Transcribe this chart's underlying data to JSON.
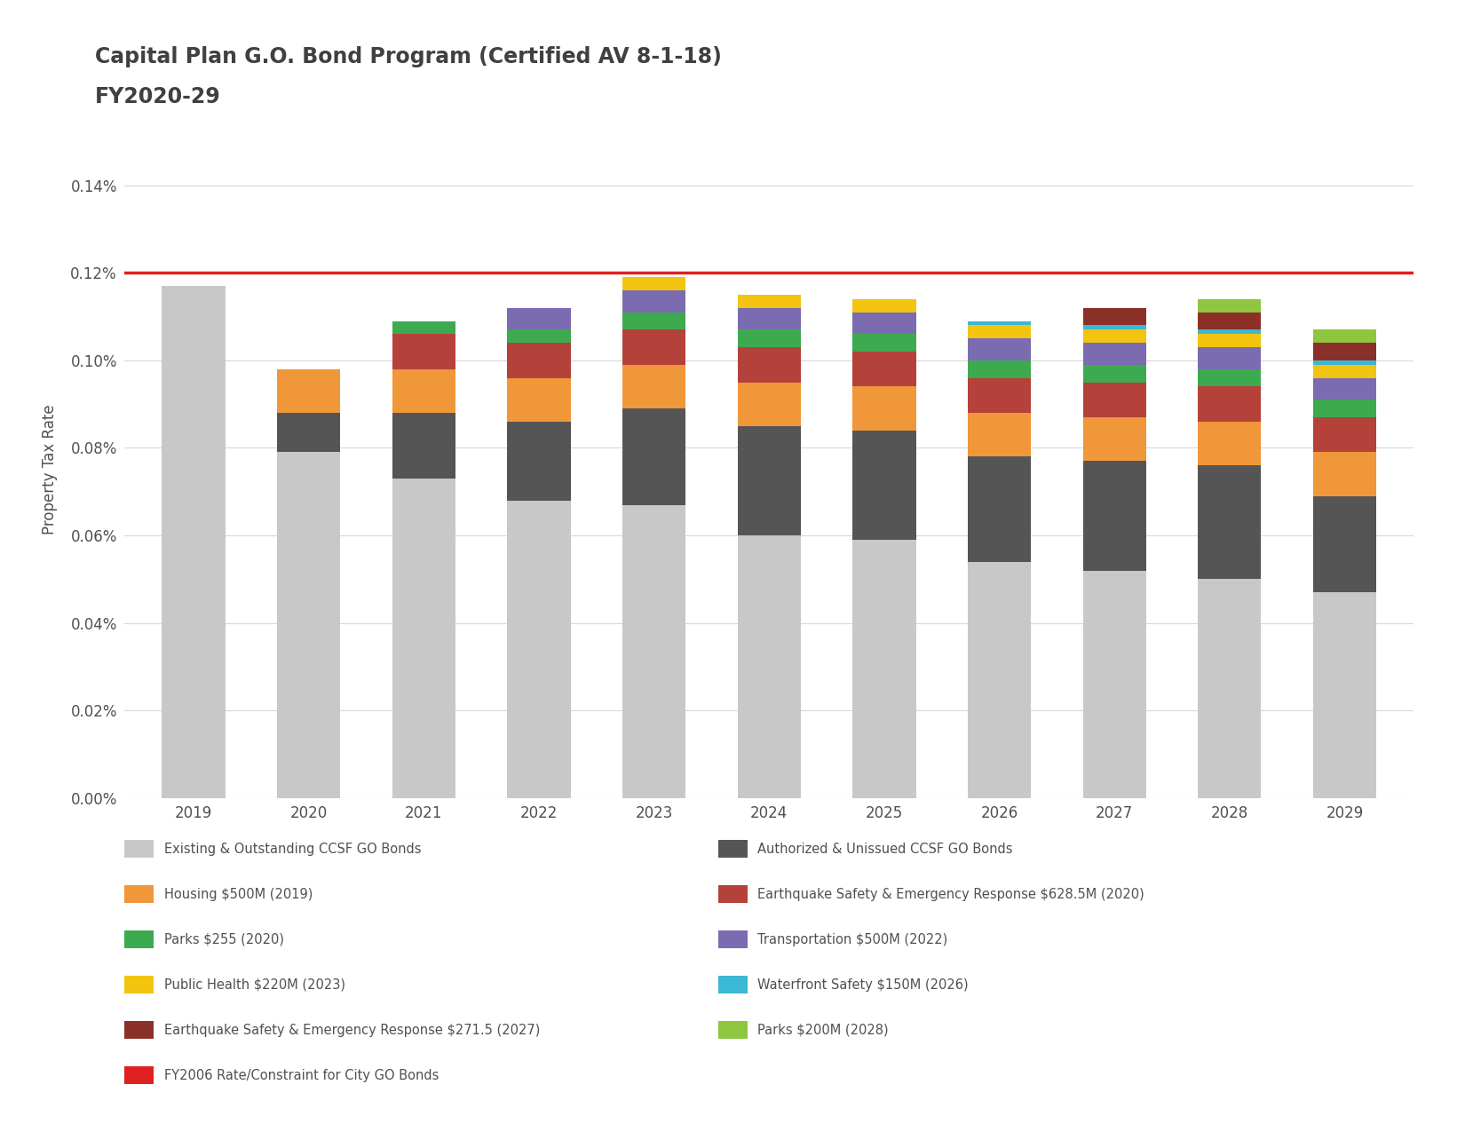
{
  "title_line1": "Capital Plan G.O. Bond Program (Certified AV 8-1-18)",
  "title_line2": "FY2020-29",
  "years": [
    "2019",
    "2020",
    "2021",
    "2022",
    "2023",
    "2024",
    "2025",
    "2026",
    "2027",
    "2028",
    "2029"
  ],
  "ylabel": "Property Tax Rate",
  "yticks": [
    0.0,
    0.0002,
    0.0004,
    0.0006,
    0.0008,
    0.001,
    0.0012,
    0.0014
  ],
  "ytick_labels": [
    "0.00%",
    "0.02%",
    "0.04%",
    "0.06%",
    "0.08%",
    "0.10%",
    "0.12%",
    "0.14%"
  ],
  "constraint_line": 0.0012,
  "segments": {
    "existing": [
      0.00117,
      0.00079,
      0.00073,
      0.00068,
      0.00067,
      0.0006,
      0.00059,
      0.00054,
      0.00052,
      0.0005,
      0.00047
    ],
    "authorized_unissued": [
      0.0,
      9e-05,
      0.00015,
      0.00018,
      0.00022,
      0.00025,
      0.00025,
      0.00024,
      0.00025,
      0.00026,
      0.00022
    ],
    "housing": [
      0.0,
      0.0001,
      0.0001,
      0.0001,
      0.0001,
      0.0001,
      0.0001,
      0.0001,
      0.0001,
      0.0001,
      0.0001
    ],
    "eser_628": [
      0.0,
      0.0,
      8e-05,
      8e-05,
      8e-05,
      8e-05,
      8e-05,
      8e-05,
      8e-05,
      8e-05,
      8e-05
    ],
    "parks_255": [
      0.0,
      0.0,
      3e-05,
      3e-05,
      4e-05,
      4e-05,
      4e-05,
      4e-05,
      4e-05,
      4e-05,
      4e-05
    ],
    "transportation": [
      0.0,
      0.0,
      0.0,
      5e-05,
      5e-05,
      5e-05,
      5e-05,
      5e-05,
      5e-05,
      5e-05,
      5e-05
    ],
    "public_health": [
      0.0,
      0.0,
      0.0,
      0.0,
      3e-05,
      3e-05,
      3e-05,
      3e-05,
      3e-05,
      3e-05,
      3e-05
    ],
    "waterfront": [
      0.0,
      0.0,
      0.0,
      0.0,
      0.0,
      0.0,
      0.0,
      1e-05,
      1e-05,
      1e-05,
      1e-05
    ],
    "eser_271": [
      0.0,
      0.0,
      0.0,
      0.0,
      0.0,
      0.0,
      0.0,
      0.0,
      4e-05,
      4e-05,
      4e-05
    ],
    "parks_200": [
      0.0,
      0.0,
      0.0,
      0.0,
      0.0,
      0.0,
      0.0,
      0.0,
      0.0,
      3e-05,
      3e-05
    ]
  },
  "colors": {
    "existing": "#c8c8c8",
    "authorized_unissued": "#555555",
    "housing": "#f0973a",
    "eser_628": "#b5413b",
    "parks_255": "#3daa4f",
    "transportation": "#7b6bb0",
    "public_health": "#f2c40f",
    "waterfront": "#3ab8d4",
    "eser_271": "#8b3028",
    "parks_200": "#8ec63f"
  },
  "legend_left": [
    {
      "label": "Existing & Outstanding CCSF GO Bonds",
      "color": "#c8c8c8"
    },
    {
      "label": "Housing $500M (2019)",
      "color": "#f0973a"
    },
    {
      "label": "Parks $255 (2020)",
      "color": "#3daa4f"
    },
    {
      "label": "Public Health $220M (2023)",
      "color": "#f2c40f"
    },
    {
      "label": "Earthquake Safety & Emergency Response $271.5 (2027)",
      "color": "#8b3028"
    },
    {
      "label": "FY2006 Rate/Constraint for City GO Bonds",
      "color": "#e02020"
    }
  ],
  "legend_right": [
    {
      "label": "Authorized & Unissued CCSF GO Bonds",
      "color": "#555555"
    },
    {
      "label": "Earthquake Safety & Emergency Response $628.5M (2020)",
      "color": "#b5413b"
    },
    {
      "label": "Transportation $500M (2022)",
      "color": "#7b6bb0"
    },
    {
      "label": "Waterfront Safety $150M (2026)",
      "color": "#3ab8d4"
    },
    {
      "label": "Parks $200M (2028)",
      "color": "#8ec63f"
    }
  ],
  "background_color": "#ffffff",
  "title_color": "#404040",
  "bar_width": 0.55
}
